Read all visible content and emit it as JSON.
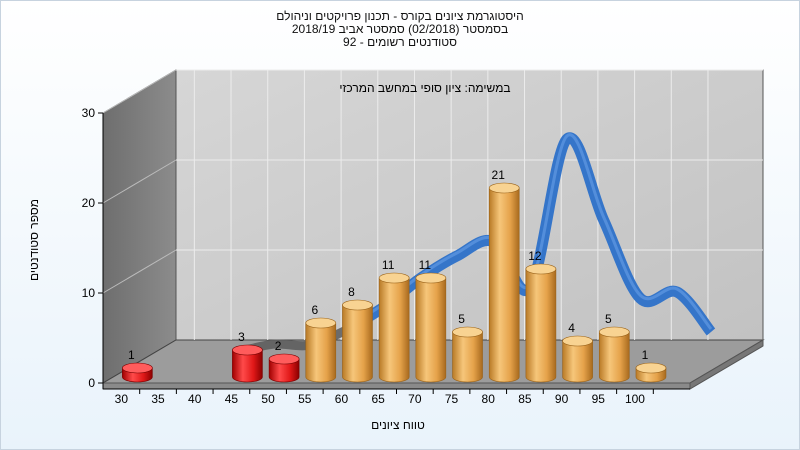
{
  "header": {
    "line1": "היסטוגרמת ציונים בקורס - תכנון פרויקטים וניהולם",
    "line2": "בסמסטר (02/2018)  סמסטר אביב 2018/19",
    "line3": "סטודנטים רשומים - 92"
  },
  "colors": {
    "fail": "#e02020",
    "pass": "#e8a94e",
    "curve": "#3575c9",
    "curve_dark": "#5a5a5a"
  },
  "chart_data": {
    "type": "bar",
    "title": "במשימה: ציון סופי במחשב המרכזי",
    "xlabel": "טווח ציונים",
    "ylabel": "מספר סטודנטים",
    "ylim": [
      0,
      30
    ],
    "yticks": [
      0,
      10,
      20,
      30
    ],
    "xticks": [
      30,
      35,
      40,
      45,
      50,
      55,
      60,
      65,
      70,
      75,
      80,
      85,
      90,
      95,
      100
    ],
    "categories": [
      "30",
      "35",
      "40",
      "45",
      "50",
      "55",
      "60",
      "65",
      "70",
      "75",
      "80",
      "85",
      "90",
      "95",
      "100"
    ],
    "values": [
      1,
      0,
      0,
      3,
      2,
      6,
      8,
      11,
      11,
      5,
      21,
      12,
      4,
      5,
      1
    ],
    "bar_colors": [
      "fail",
      null,
      null,
      "fail",
      "fail",
      "pass",
      "pass",
      "pass",
      "pass",
      "pass",
      "pass",
      "pass",
      "pass",
      "pass",
      "pass"
    ],
    "curve": {
      "x": [
        40,
        45,
        50,
        55,
        60,
        65,
        70,
        75,
        80,
        85,
        90,
        95,
        100
      ],
      "y": [
        0.3,
        1.2,
        1.1,
        2.8,
        5.3,
        8.5,
        11.0,
        12.6,
        7.5,
        24.0,
        15.0,
        6.3,
        7.0
      ]
    },
    "grid": true,
    "legend": "none"
  }
}
